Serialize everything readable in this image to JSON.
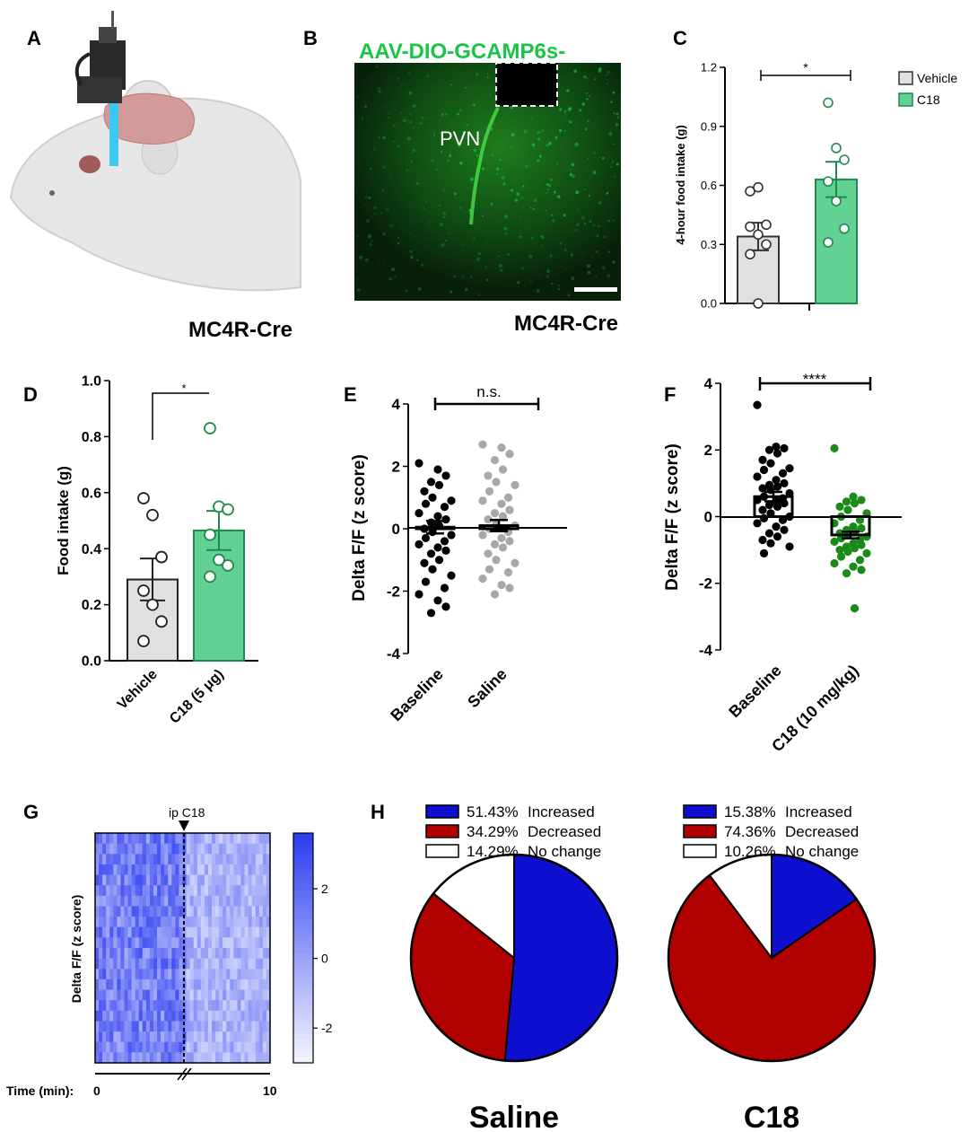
{
  "colors": {
    "vehicle_fill": "#e0e0e0",
    "c18_fill": "#62d193",
    "c18_edge": "#1f8a4c",
    "gfp": "#19c545",
    "green_dot": "#1a8a1a",
    "grey_dot": "#a8a8a8",
    "blue": "#0f0fcf",
    "red": "#b00000",
    "heat_hi": "#2b3cf0",
    "heat_lo": "#f5f6ff"
  },
  "panelA": {
    "letter": "A",
    "label": "MC4R-Cre"
  },
  "panelB": {
    "letter": "B",
    "title": "AAV-DIO-GCAMP6s-",
    "region": "PVN",
    "label": "MC4R-Cre"
  },
  "chart_data": [
    {
      "panel": "C",
      "letter": "C",
      "type": "bar",
      "ylabel": "4-hour food intake (g)",
      "ylim": [
        0,
        1.2
      ],
      "yticks": [
        0.0,
        0.3,
        0.6,
        0.9,
        1.2
      ],
      "ytick_labels": [
        "0.0",
        "0.3",
        "0.6",
        "0.9",
        "1.2"
      ],
      "categories": [
        "Vehicle",
        "C18"
      ],
      "means": [
        0.34,
        0.63
      ],
      "sem": [
        0.07,
        0.09
      ],
      "legend": [
        "Vehicle",
        "C18"
      ],
      "significance": "*",
      "points": [
        [
          0.57,
          0.59,
          0.4,
          0.39,
          0.35,
          0.3,
          0.25,
          0.0
        ],
        [
          1.02,
          0.79,
          0.73,
          0.62,
          0.52,
          0.38,
          0.31
        ]
      ]
    },
    {
      "panel": "D",
      "letter": "D",
      "type": "bar",
      "ylabel": "Food intake (g)",
      "ylim": [
        0,
        1.0
      ],
      "yticks": [
        0.0,
        0.2,
        0.4,
        0.6,
        0.8,
        1.0
      ],
      "ytick_labels": [
        "0.0",
        "0.2",
        "0.4",
        "0.6",
        "0.8",
        "1.0"
      ],
      "categories": [
        "Vehicle",
        "C18 (5 μg)"
      ],
      "means": [
        0.29,
        0.465
      ],
      "sem": [
        0.075,
        0.07
      ],
      "significance": "*",
      "points": [
        [
          0.58,
          0.52,
          0.37,
          0.25,
          0.2,
          0.14,
          0.07
        ],
        [
          0.83,
          0.55,
          0.54,
          0.45,
          0.36,
          0.34,
          0.3
        ]
      ]
    },
    {
      "panel": "E",
      "letter": "E",
      "type": "scatter",
      "ylabel": "Delta F/F (z score)",
      "ylim": [
        -4,
        4
      ],
      "yticks": [
        -4,
        -2,
        0,
        2,
        4
      ],
      "ytick_labels": [
        "-4",
        "-2",
        "0",
        "2",
        "4"
      ],
      "categories": [
        "Baseline",
        "Saline"
      ],
      "means": [
        0.05,
        0.1
      ],
      "sem": [
        0.2,
        0.18
      ],
      "significance": "n.s.",
      "points": [
        [
          2.1,
          1.9,
          1.7,
          1.5,
          1.4,
          1.2,
          1.0,
          0.9,
          0.8,
          0.7,
          0.5,
          0.4,
          0.3,
          0.2,
          0.1,
          0.0,
          -0.1,
          -0.2,
          -0.3,
          -0.4,
          -0.5,
          -0.6,
          -0.7,
          -0.8,
          -1.0,
          -1.1,
          -1.3,
          -1.5,
          -1.7,
          -1.9,
          -2.1,
          -2.3,
          -2.5,
          -2.7
        ],
        [
          2.7,
          2.6,
          2.4,
          2.2,
          1.9,
          1.7,
          1.5,
          1.4,
          1.2,
          1.0,
          0.9,
          0.8,
          0.6,
          0.5,
          0.4,
          0.3,
          0.2,
          0.1,
          0.0,
          -0.1,
          -0.2,
          -0.3,
          -0.4,
          -0.5,
          -0.6,
          -0.8,
          -1.0,
          -1.1,
          -1.3,
          -1.4,
          -1.6,
          -1.8,
          -1.9,
          -2.1
        ]
      ]
    },
    {
      "panel": "F",
      "letter": "F",
      "type": "scatter",
      "ylabel": "Delta F/F (z score)",
      "ylim": [
        -4,
        4
      ],
      "yticks": [
        -4,
        -2,
        0,
        2,
        4
      ],
      "ytick_labels": [
        "-4",
        "-2",
        "0",
        "2",
        "4"
      ],
      "categories": [
        "Baseline",
        "C18 (10 mg/kg)"
      ],
      "means": [
        0.6,
        -0.55
      ],
      "sem": [
        0.14,
        0.1
      ],
      "significance": "****",
      "points": [
        [
          3.35,
          2.1,
          2.05,
          2.0,
          1.9,
          1.7,
          1.6,
          1.45,
          1.4,
          1.3,
          1.2,
          1.1,
          1.0,
          0.95,
          0.9,
          0.85,
          0.8,
          0.7,
          0.6,
          0.55,
          0.5,
          0.45,
          0.4,
          0.35,
          0.3,
          0.2,
          0.1,
          0.0,
          -0.05,
          -0.1,
          -0.2,
          -0.3,
          -0.4,
          -0.5,
          -0.6,
          -0.7,
          -0.8,
          -0.9,
          -1.1
        ],
        [
          2.05,
          0.6,
          0.5,
          0.45,
          0.4,
          0.3,
          0.2,
          0.1,
          0.0,
          -0.1,
          -0.2,
          -0.3,
          -0.35,
          -0.4,
          -0.45,
          -0.5,
          -0.55,
          -0.6,
          -0.65,
          -0.7,
          -0.75,
          -0.8,
          -0.85,
          -0.9,
          -0.95,
          -1.0,
          -1.05,
          -1.1,
          -1.2,
          -1.3,
          -1.4,
          -1.5,
          -1.6,
          -1.7,
          -2.75
        ]
      ]
    },
    {
      "panel": "G",
      "letter": "G",
      "type": "heatmap",
      "ylabel": "Delta F/F (z score)",
      "annotation": "ip C18",
      "xlabel": "Time (min):",
      "xticks": [
        "0",
        "10"
      ],
      "colorbar_ticks": [
        2,
        0,
        -2
      ],
      "colorbar_tick_labels": [
        "2",
        "0",
        "-2"
      ],
      "clim": [
        -3,
        3.6
      ]
    },
    {
      "panel": "H",
      "letter": "H",
      "type": "pie",
      "charts": [
        {
          "title": "Saline",
          "values": [
            51.43,
            34.29,
            14.29
          ],
          "labels": [
            "51.43%",
            "34.29%",
            "14.29%"
          ],
          "categories": [
            "Increased",
            "Decreased",
            "No change"
          ]
        },
        {
          "title": "C18",
          "values": [
            15.38,
            74.36,
            10.26
          ],
          "labels": [
            "15.38%",
            "74.36%",
            "10.26%"
          ],
          "categories": [
            "Increased",
            "Decreased",
            "No change"
          ]
        }
      ]
    }
  ]
}
